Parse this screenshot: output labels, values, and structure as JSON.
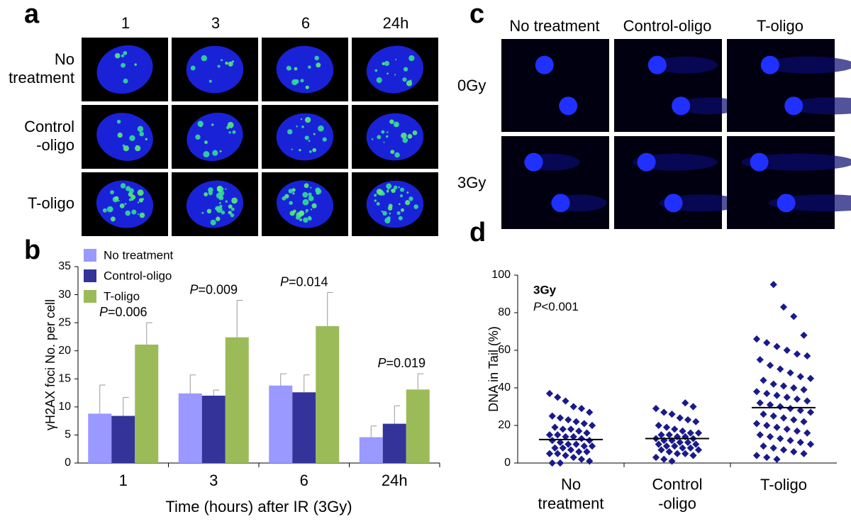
{
  "panels": {
    "a": {
      "label": "a",
      "columns": [
        "1",
        "3",
        "6",
        "24h"
      ],
      "rows": [
        "No\ntreatment",
        "Control\n-oligo",
        "T-oligo"
      ]
    },
    "c": {
      "label": "c",
      "columns": [
        "No treatment",
        "Control-oligo",
        "T-oligo"
      ],
      "rows": [
        "0Gy",
        "3Gy"
      ]
    }
  },
  "chart_data": [
    {
      "type": "bar",
      "panel_label": "b",
      "ylabel": "γH2AX foci No. per cell",
      "xlabel": "Time (hours) after IR (3Gy)",
      "categories": [
        "1",
        "3",
        "6",
        "24h"
      ],
      "series": [
        {
          "name": "No treatment",
          "color": "#9999ff",
          "values": [
            8.8,
            12.4,
            13.8,
            4.6
          ],
          "errors": [
            5.1,
            3.3,
            2.1,
            2.0
          ]
        },
        {
          "name": "Control-oligo",
          "color": "#333399",
          "values": [
            8.4,
            12.0,
            12.6,
            7.0
          ],
          "errors": [
            3.3,
            1.0,
            3.1,
            3.2
          ]
        },
        {
          "name": "T-oligo",
          "color": "#9bbb59",
          "values": [
            21.1,
            22.4,
            24.4,
            13.1
          ],
          "errors": [
            3.9,
            6.6,
            6.0,
            2.8
          ]
        }
      ],
      "annotations": [
        {
          "italic": "P",
          "text": "=0.006"
        },
        {
          "italic": "P",
          "text": "=0.009"
        },
        {
          "italic": "P",
          "text": "=0.014"
        },
        {
          "italic": "P",
          "text": "=0.019"
        }
      ],
      "ylim": [
        0,
        35
      ],
      "yticks": [
        0,
        5,
        10,
        15,
        20,
        25,
        30,
        35
      ],
      "legend": "top-left"
    },
    {
      "type": "strip",
      "panel_label": "d",
      "title": "3Gy",
      "annotation": {
        "italic": "P",
        "text": "<0.001"
      },
      "ylabel": "DNA in Tail (%)",
      "categories": [
        "No\ntreatment",
        "Control\n-oligo",
        "T-oligo"
      ],
      "color": "#1a1a8c",
      "groups": [
        [
          37,
          35,
          33,
          30,
          29,
          27,
          25,
          24,
          23,
          22,
          21,
          20,
          19,
          18,
          18,
          17,
          16,
          15,
          15,
          14,
          14,
          13,
          12,
          12,
          11,
          10,
          10,
          9,
          9,
          8,
          8,
          7,
          6,
          6,
          5,
          5,
          4,
          3,
          2,
          1,
          0,
          0
        ],
        [
          32,
          30,
          29,
          27,
          26,
          24,
          23,
          22,
          20,
          19,
          18,
          17,
          16,
          16,
          15,
          15,
          14,
          14,
          13,
          13,
          12,
          12,
          11,
          11,
          10,
          10,
          9,
          9,
          8,
          8,
          7,
          7,
          6,
          5,
          5,
          4,
          3,
          2,
          1
        ],
        [
          95,
          83,
          78,
          68,
          66,
          64,
          62,
          60,
          58,
          57,
          55,
          52,
          50,
          48,
          46,
          45,
          44,
          42,
          41,
          40,
          39,
          38,
          37,
          36,
          35,
          34,
          33,
          32,
          31,
          30,
          29,
          28,
          27,
          26,
          25,
          24,
          23,
          22,
          21,
          20,
          19,
          18,
          17,
          16,
          15,
          14,
          13,
          12,
          11,
          10,
          9,
          8,
          7,
          6,
          5,
          4,
          3,
          2
        ]
      ],
      "means": [
        12.5,
        13,
        29.5
      ],
      "ylim": [
        0,
        100
      ],
      "yticks": [
        0,
        20,
        40,
        60,
        80,
        100
      ]
    }
  ]
}
